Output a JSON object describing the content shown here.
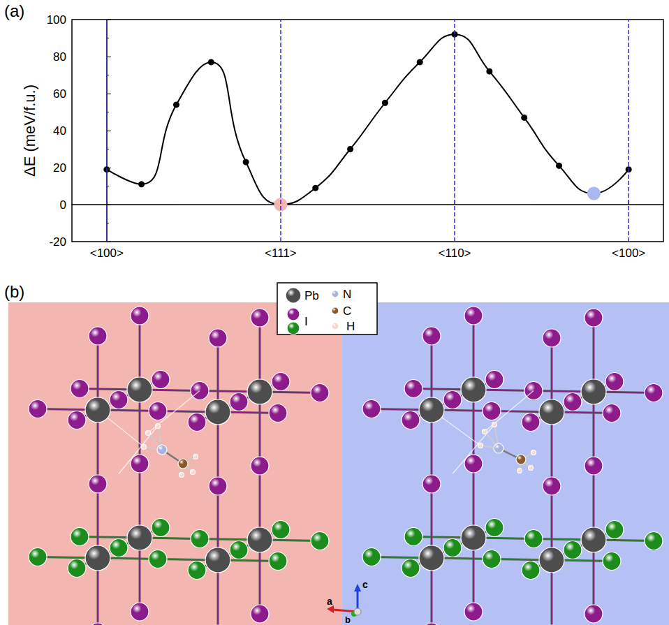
{
  "chart_data": {
    "type": "line",
    "y_label": "ΔE (meV/f.u.)",
    "x": [
      0,
      0.2,
      0.4,
      0.6,
      0.8,
      1.0,
      1.2,
      1.4,
      1.6,
      1.8,
      2.0,
      2.2,
      2.4,
      2.6,
      2.8,
      3.0
    ],
    "values": [
      19,
      11,
      54,
      77,
      23,
      0,
      9,
      30,
      55,
      77,
      92,
      72,
      47,
      21,
      6,
      19
    ],
    "color": "#000000",
    "colors": [
      "#000000",
      "#000000",
      "#000000",
      "#000000",
      "#000000",
      "#f4b4b0",
      "#000000",
      "#000000",
      "#000000",
      "#000000",
      "#000000",
      "#000000",
      "#000000",
      "#000000",
      "#aab8f2",
      "#000000"
    ],
    "marker": "circle",
    "line_style": "solid",
    "xlim": [
      -0.2,
      3.2
    ],
    "xticks": [
      {
        "value": 0,
        "label": "<100>"
      },
      {
        "value": 1,
        "label": "<111>"
      },
      {
        "value": 2,
        "label": "<110>"
      },
      {
        "value": 3,
        "label": "<100>"
      }
    ],
    "ylim": [
      -20,
      100
    ],
    "yticks": [
      -20,
      0,
      20,
      40,
      60,
      80,
      100
    ],
    "grid": true
  },
  "panel_labels": [
    "(a)",
    "(b)"
  ],
  "structure": {
    "legend": [
      {
        "label": "Pb",
        "colors": [
          "#4d4d4d"
        ]
      },
      {
        "label": "N",
        "colors": [
          "#a9b3e0"
        ]
      },
      {
        "label": "I",
        "colors": [
          "#8e1b8c",
          "#1c8c1c"
        ]
      },
      {
        "label": "C",
        "colors": [
          "#8b5a2b"
        ]
      },
      {
        "label": "H",
        "colors": [
          "#f3d8cf"
        ]
      }
    ],
    "axes": [
      {
        "label": "a",
        "color": "#d42020"
      },
      {
        "label": "b",
        "color": "#20b020"
      },
      {
        "label": "c",
        "color": "#2040e0"
      }
    ]
  }
}
